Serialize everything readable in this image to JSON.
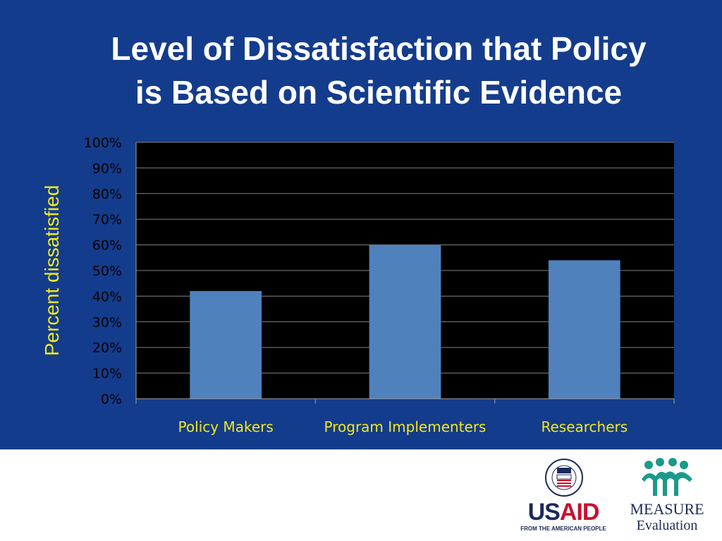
{
  "slide": {
    "title_line1": "Level of Dissatisfaction that Policy",
    "title_line2": "is Based on Scientific Evidence"
  },
  "chart_data": {
    "type": "bar",
    "title": "Level of Dissatisfaction that Policy is Based on Scientific Evidence",
    "ylabel": "Percent dissatisfied",
    "xlabel": "",
    "categories": [
      "Policy Makers",
      "Program Implementers",
      "Researchers"
    ],
    "values": [
      42,
      60,
      54
    ],
    "ylim": [
      0,
      100
    ],
    "yticks": [
      0,
      10,
      20,
      30,
      40,
      50,
      60,
      70,
      80,
      90,
      100
    ],
    "ytick_format": "%",
    "grid": true,
    "legend": "none",
    "colors": {
      "bar": "#4f81bd",
      "plot_background": "#000000",
      "gridline": "#808080",
      "tick_label": "#000000",
      "category_label": "#f0e81e"
    }
  },
  "logos": {
    "usaid": {
      "wordmark_us": "US",
      "wordmark_aid": "AID",
      "tagline": "FROM THE AMERICAN PEOPLE",
      "seal_text": "UNITED STATES AGENCY INTERNATIONAL DEVELOPMENT",
      "colors": {
        "navy": "#1b2a5c",
        "red": "#c8102e"
      }
    },
    "measure": {
      "wordmark": "MEASURE",
      "subtitle": "Evaluation",
      "colors": {
        "teal": "#1a9a8a",
        "navy": "#1b2a5c"
      }
    }
  }
}
